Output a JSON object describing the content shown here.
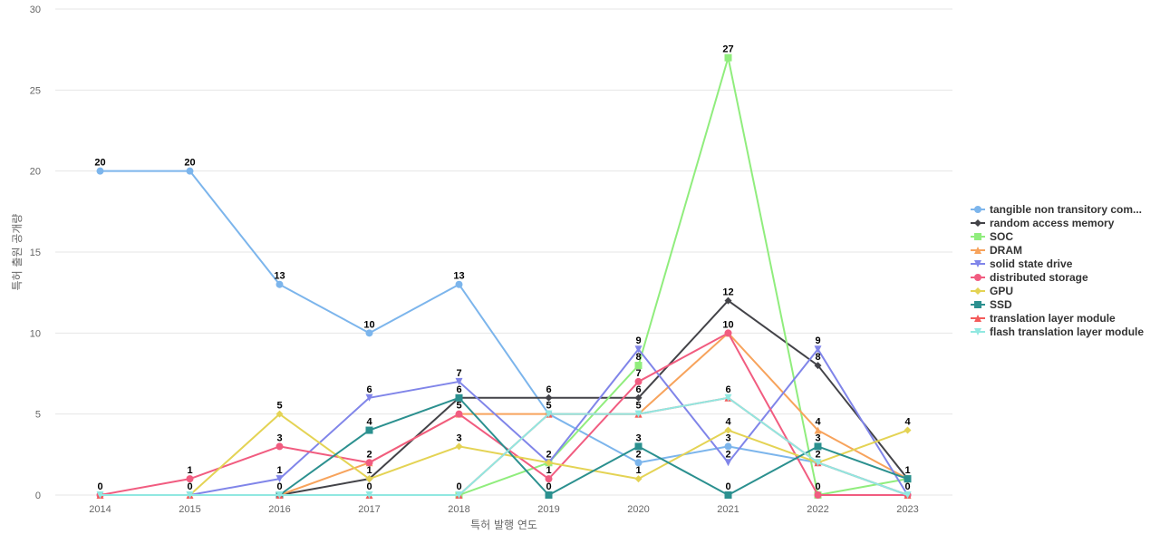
{
  "chart_data": {
    "type": "line",
    "title": "",
    "xlabel": "특허 발행 연도",
    "ylabel": "특허 출원 공개량",
    "x": [
      "2014",
      "2015",
      "2016",
      "2017",
      "2018",
      "2019",
      "2020",
      "2021",
      "2022",
      "2023"
    ],
    "ylim": [
      0,
      30
    ],
    "yticks": [
      0,
      5,
      10,
      15,
      20,
      25,
      30
    ],
    "grid": true,
    "legend_position": "right",
    "series": [
      {
        "name": "tangible non transitory com...",
        "color": "#7cb5ec",
        "marker": "circle",
        "values": [
          20,
          20,
          13,
          10,
          13,
          5,
          2,
          3,
          2,
          0
        ]
      },
      {
        "name": "random access memory",
        "color": "#434348",
        "marker": "diamond",
        "values": [
          null,
          null,
          0,
          1,
          6,
          6,
          6,
          12,
          8,
          1
        ]
      },
      {
        "name": "SOC",
        "color": "#90ed7d",
        "marker": "square",
        "values": [
          null,
          null,
          null,
          null,
          0,
          2,
          8,
          27,
          0,
          1
        ]
      },
      {
        "name": "DRAM",
        "color": "#f7a35c",
        "marker": "triangle",
        "values": [
          null,
          null,
          0,
          2,
          5,
          5,
          5,
          10,
          4,
          1
        ]
      },
      {
        "name": "solid state drive",
        "color": "#8085e9",
        "marker": "triangle-down",
        "values": [
          null,
          0,
          1,
          6,
          7,
          2,
          9,
          2,
          9,
          0
        ]
      },
      {
        "name": "distributed storage",
        "color": "#f15c80",
        "marker": "circle",
        "values": [
          0,
          1,
          3,
          2,
          5,
          1,
          7,
          10,
          0,
          0
        ]
      },
      {
        "name": "GPU",
        "color": "#e4d354",
        "marker": "diamond",
        "values": [
          null,
          0,
          5,
          1,
          3,
          2,
          1,
          4,
          2,
          4
        ]
      },
      {
        "name": "SSD",
        "color": "#2b908f",
        "marker": "square",
        "values": [
          null,
          null,
          0,
          4,
          6,
          0,
          3,
          0,
          3,
          1
        ]
      },
      {
        "name": "translation layer module",
        "color": "#f45b5b",
        "marker": "triangle",
        "values": [
          0,
          0,
          0,
          0,
          0,
          5,
          5,
          6,
          2,
          0
        ]
      },
      {
        "name": "flash translation layer module",
        "color": "#91e8e1",
        "marker": "triangle-down",
        "values": [
          0,
          0,
          0,
          0,
          0,
          5,
          5,
          6,
          2,
          0
        ]
      }
    ],
    "data_labels": [
      {
        "x": "2014",
        "text": "20",
        "value": 20
      },
      {
        "x": "2014",
        "text": "0",
        "value": 0
      },
      {
        "x": "2015",
        "text": "20",
        "value": 20
      },
      {
        "x": "2015",
        "text": "1",
        "value": 1
      },
      {
        "x": "2015",
        "text": "0",
        "value": 0
      },
      {
        "x": "2016",
        "text": "13",
        "value": 13
      },
      {
        "x": "2016",
        "text": "5",
        "value": 5
      },
      {
        "x": "2016",
        "text": "3",
        "value": 3
      },
      {
        "x": "2016",
        "text": "1",
        "value": 1
      },
      {
        "x": "2016",
        "text": "0",
        "value": 0
      },
      {
        "x": "2017",
        "text": "10",
        "value": 10
      },
      {
        "x": "2017",
        "text": "6",
        "value": 6
      },
      {
        "x": "2017",
        "text": "4",
        "value": 4
      },
      {
        "x": "2017",
        "text": "2",
        "value": 2
      },
      {
        "x": "2017",
        "text": "1",
        "value": 1
      },
      {
        "x": "2017",
        "text": "0",
        "value": 0
      },
      {
        "x": "2018",
        "text": "13",
        "value": 13
      },
      {
        "x": "2018",
        "text": "7",
        "value": 7
      },
      {
        "x": "2018",
        "text": "6",
        "value": 6
      },
      {
        "x": "2018",
        "text": "5",
        "value": 5
      },
      {
        "x": "2018",
        "text": "3",
        "value": 3
      },
      {
        "x": "2018",
        "text": "0",
        "value": 0
      },
      {
        "x": "2019",
        "text": "6",
        "value": 6
      },
      {
        "x": "2019",
        "text": "5",
        "value": 5
      },
      {
        "x": "2019",
        "text": "2",
        "value": 2
      },
      {
        "x": "2019",
        "text": "1",
        "value": 1
      },
      {
        "x": "2019",
        "text": "0",
        "value": 0
      },
      {
        "x": "2020",
        "text": "9",
        "value": 9
      },
      {
        "x": "2020",
        "text": "8",
        "value": 8
      },
      {
        "x": "2020",
        "text": "7",
        "value": 7
      },
      {
        "x": "2020",
        "text": "6",
        "value": 6
      },
      {
        "x": "2020",
        "text": "5",
        "value": 5
      },
      {
        "x": "2020",
        "text": "3",
        "value": 3
      },
      {
        "x": "2020",
        "text": "2",
        "value": 2
      },
      {
        "x": "2020",
        "text": "1",
        "value": 1
      },
      {
        "x": "2021",
        "text": "27",
        "value": 27
      },
      {
        "x": "2021",
        "text": "12",
        "value": 12
      },
      {
        "x": "2021",
        "text": "10",
        "value": 10
      },
      {
        "x": "2021",
        "text": "6",
        "value": 6
      },
      {
        "x": "2021",
        "text": "4",
        "value": 4
      },
      {
        "x": "2021",
        "text": "3",
        "value": 3
      },
      {
        "x": "2021",
        "text": "2",
        "value": 2
      },
      {
        "x": "2021",
        "text": "0",
        "value": 0
      },
      {
        "x": "2022",
        "text": "9",
        "value": 9
      },
      {
        "x": "2022",
        "text": "8",
        "value": 8
      },
      {
        "x": "2022",
        "text": "4",
        "value": 4
      },
      {
        "x": "2022",
        "text": "3",
        "value": 3
      },
      {
        "x": "2022",
        "text": "2",
        "value": 2
      },
      {
        "x": "2022",
        "text": "0",
        "value": 0
      },
      {
        "x": "2023",
        "text": "4",
        "value": 4
      },
      {
        "x": "2023",
        "text": "1",
        "value": 1
      },
      {
        "x": "2023",
        "text": "0",
        "value": 0
      }
    ]
  }
}
